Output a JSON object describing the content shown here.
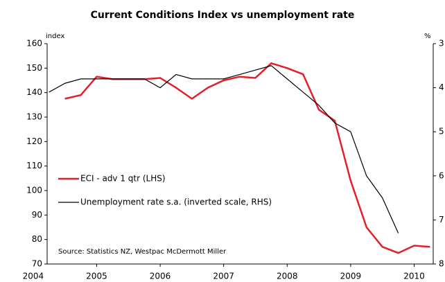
{
  "chart_data": {
    "type": "line",
    "title": "Current Conditions Index vs unemployment rate",
    "y_label": "index",
    "y2_label": "%",
    "source": "Source:  Statistics NZ, Westpac McDermott Miller",
    "x": [
      2004.25,
      2004.5,
      2004.75,
      2005,
      2005.25,
      2005.5,
      2005.75,
      2006,
      2006.25,
      2006.5,
      2006.75,
      2007,
      2007.25,
      2007.5,
      2007.75,
      2008,
      2008.25,
      2008.5,
      2008.75,
      2009,
      2009.25,
      2009.5,
      2009.75,
      2010,
      2010.25
    ],
    "xlim": [
      2004.22,
      2010.3
    ],
    "xticks": [
      2004,
      2005,
      2006,
      2007,
      2008,
      2009,
      2010
    ],
    "ylim": [
      70,
      160
    ],
    "yticks": [
      70,
      80,
      90,
      100,
      110,
      120,
      130,
      140,
      150,
      160
    ],
    "y2lim": [
      8,
      3
    ],
    "y2ticks": [
      3,
      4,
      5,
      6,
      7,
      8
    ],
    "y2_inverted": true,
    "legend": "left",
    "series": [
      {
        "name": "ECI - adv 1 qtr (LHS)",
        "color": "#e3202a",
        "values": [
          null,
          137.5,
          139,
          146.5,
          145.5,
          145.5,
          145.5,
          146,
          142,
          137.5,
          142,
          145,
          146.5,
          146,
          152,
          150,
          147.5,
          133,
          128.5,
          104,
          85,
          77,
          74.5,
          77.5,
          77
        ]
      },
      {
        "name": "Unemployment rate s.a. (inverted scale, RHS)",
        "color": "#000000",
        "axis": "y2",
        "values": [
          4.1,
          3.9,
          3.8,
          3.8,
          3.8,
          3.8,
          3.8,
          4.0,
          3.7,
          3.8,
          3.8,
          3.8,
          3.7,
          3.6,
          3.5,
          3.8,
          4.1,
          4.4,
          4.8,
          5.0,
          6.0,
          6.5,
          7.3,
          null,
          null
        ]
      }
    ]
  }
}
